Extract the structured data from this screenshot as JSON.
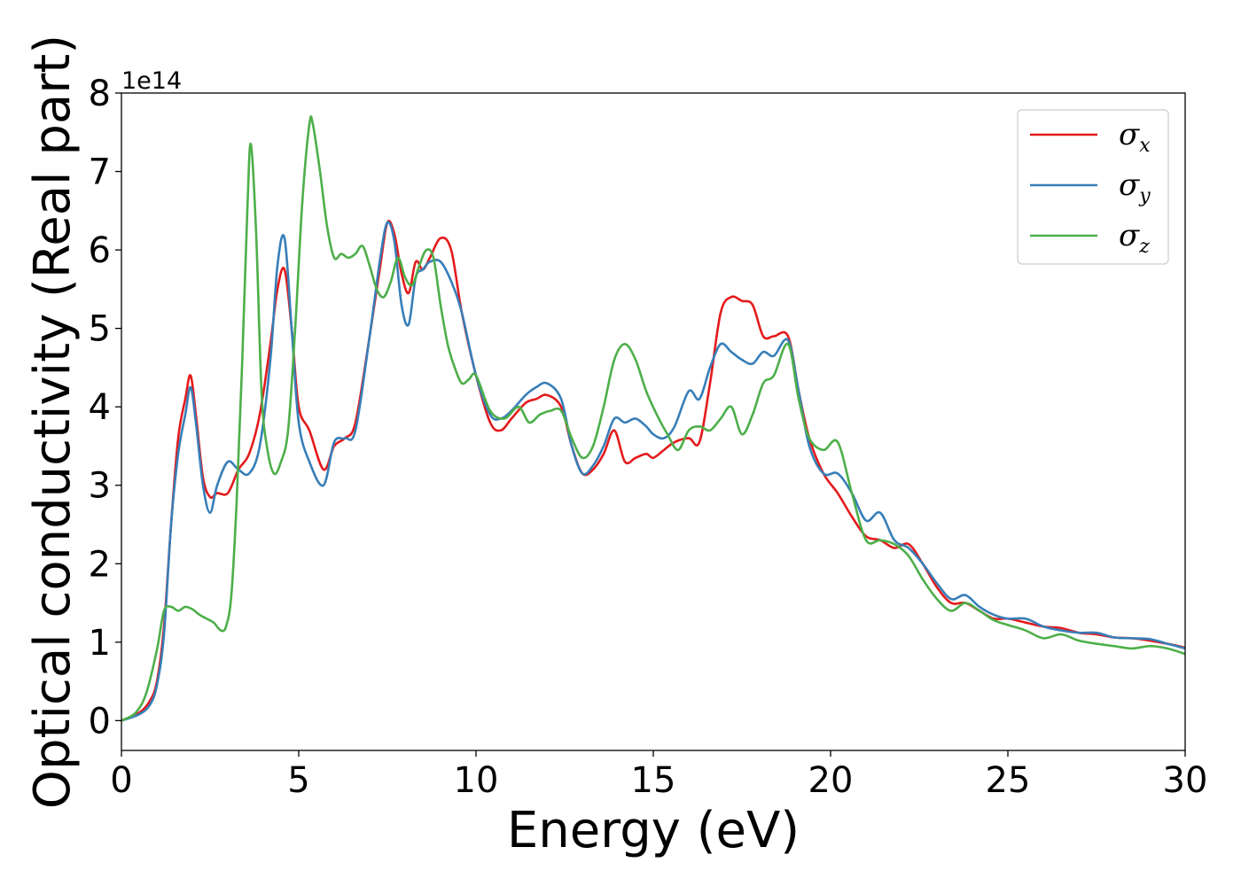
{
  "chart_data": {
    "type": "line",
    "xlabel": "Energy (eV)",
    "ylabel": "Optical conductivity (Real part)",
    "y_offset_label": "1e14",
    "xlim": [
      0,
      30
    ],
    "ylim": [
      -0.38,
      8.0
    ],
    "xticks": [
      0,
      5,
      10,
      15,
      20,
      25,
      30
    ],
    "yticks": [
      0,
      1,
      2,
      3,
      4,
      5,
      6,
      7,
      8
    ],
    "grid": false,
    "legend_position": "top-right",
    "series": [
      {
        "name": "σx",
        "symbol": "σ",
        "subscript": "x",
        "color": "#e41a1c",
        "x": [
          0,
          0.5,
          0.8,
          1.0,
          1.2,
          1.4,
          1.6,
          1.8,
          1.95,
          2.1,
          2.3,
          2.5,
          2.7,
          3.0,
          3.3,
          3.6,
          3.9,
          4.2,
          4.4,
          4.6,
          4.8,
          5.0,
          5.3,
          5.7,
          6.0,
          6.3,
          6.6,
          7.0,
          7.3,
          7.5,
          7.7,
          7.9,
          8.1,
          8.3,
          8.5,
          8.7,
          9.0,
          9.3,
          9.6,
          10.0,
          10.4,
          10.7,
          11.0,
          11.4,
          11.7,
          12.0,
          12.4,
          12.7,
          13.0,
          13.3,
          13.6,
          13.9,
          14.2,
          14.5,
          14.8,
          15.0,
          15.3,
          15.6,
          16.0,
          16.3,
          16.6,
          16.9,
          17.2,
          17.5,
          17.8,
          18.1,
          18.4,
          18.8,
          19.1,
          19.4,
          19.8,
          20.2,
          20.6,
          21.0,
          21.4,
          21.8,
          22.2,
          22.6,
          23.0,
          23.4,
          23.8,
          24.2,
          24.6,
          25.0,
          25.5,
          26.0,
          26.5,
          27.0,
          27.5,
          28.0,
          28.5,
          29.0,
          29.5,
          30.0
        ],
        "y": [
          0,
          0.1,
          0.25,
          0.5,
          1.2,
          2.5,
          3.6,
          4.1,
          4.4,
          3.9,
          3.1,
          2.85,
          2.9,
          2.9,
          3.2,
          3.4,
          3.9,
          4.8,
          5.5,
          5.75,
          5.0,
          4.0,
          3.7,
          3.2,
          3.5,
          3.6,
          3.8,
          4.9,
          5.8,
          6.35,
          6.2,
          5.7,
          5.45,
          5.85,
          5.75,
          5.9,
          6.15,
          6.0,
          5.2,
          4.4,
          3.8,
          3.7,
          3.85,
          4.05,
          4.1,
          4.15,
          4.0,
          3.5,
          3.15,
          3.2,
          3.4,
          3.7,
          3.3,
          3.35,
          3.4,
          3.35,
          3.45,
          3.55,
          3.6,
          3.55,
          4.3,
          5.2,
          5.4,
          5.35,
          5.3,
          4.9,
          4.9,
          4.9,
          4.2,
          3.6,
          3.15,
          2.9,
          2.6,
          2.35,
          2.3,
          2.2,
          2.25,
          2.0,
          1.7,
          1.5,
          1.5,
          1.4,
          1.3,
          1.3,
          1.25,
          1.2,
          1.18,
          1.12,
          1.1,
          1.06,
          1.05,
          1.02,
          0.98,
          0.93
        ]
      },
      {
        "name": "σy",
        "symbol": "σ",
        "subscript": "y",
        "color": "#377eb8",
        "x": [
          0,
          0.5,
          0.8,
          1.0,
          1.2,
          1.4,
          1.6,
          1.8,
          1.95,
          2.1,
          2.3,
          2.5,
          2.7,
          3.0,
          3.3,
          3.6,
          3.9,
          4.2,
          4.4,
          4.6,
          4.8,
          5.0,
          5.3,
          5.7,
          6.0,
          6.3,
          6.6,
          7.0,
          7.3,
          7.5,
          7.7,
          7.9,
          8.1,
          8.3,
          8.5,
          8.7,
          9.0,
          9.3,
          9.6,
          10.0,
          10.4,
          10.7,
          11.0,
          11.4,
          11.7,
          12.0,
          12.4,
          12.7,
          13.0,
          13.3,
          13.6,
          13.9,
          14.2,
          14.5,
          14.8,
          15.0,
          15.3,
          15.6,
          16.0,
          16.3,
          16.6,
          16.9,
          17.2,
          17.5,
          17.8,
          18.1,
          18.4,
          18.8,
          19.1,
          19.4,
          19.8,
          20.2,
          20.6,
          21.0,
          21.4,
          21.8,
          22.2,
          22.6,
          23.0,
          23.4,
          23.8,
          24.2,
          24.6,
          25.0,
          25.5,
          26.0,
          26.5,
          27.0,
          27.5,
          28.0,
          28.5,
          29.0,
          29.5,
          30.0
        ],
        "y": [
          0,
          0.08,
          0.2,
          0.45,
          1.1,
          2.5,
          3.4,
          3.9,
          4.25,
          3.8,
          3.0,
          2.65,
          3.0,
          3.3,
          3.2,
          3.15,
          3.5,
          4.6,
          5.8,
          6.15,
          5.0,
          3.8,
          3.3,
          3.0,
          3.55,
          3.6,
          3.7,
          4.9,
          5.9,
          6.35,
          6.1,
          5.3,
          5.05,
          5.65,
          5.75,
          5.85,
          5.85,
          5.6,
          5.2,
          4.4,
          3.9,
          3.85,
          3.95,
          4.15,
          4.25,
          4.3,
          4.1,
          3.5,
          3.15,
          3.25,
          3.5,
          3.85,
          3.8,
          3.85,
          3.75,
          3.65,
          3.6,
          3.75,
          4.2,
          4.1,
          4.5,
          4.8,
          4.7,
          4.6,
          4.55,
          4.7,
          4.65,
          4.85,
          4.2,
          3.5,
          3.15,
          3.15,
          2.9,
          2.55,
          2.65,
          2.3,
          2.2,
          2.0,
          1.75,
          1.55,
          1.6,
          1.45,
          1.35,
          1.3,
          1.3,
          1.2,
          1.15,
          1.12,
          1.12,
          1.06,
          1.05,
          1.04,
          0.98,
          0.92
        ]
      },
      {
        "name": "σz",
        "symbol": "σ",
        "subscript": "z",
        "color": "#4daf4a",
        "x": [
          0,
          0.4,
          0.7,
          1.0,
          1.2,
          1.4,
          1.6,
          1.8,
          2.0,
          2.2,
          2.4,
          2.6,
          2.8,
          2.95,
          3.1,
          3.25,
          3.4,
          3.55,
          3.65,
          3.8,
          3.95,
          4.1,
          4.3,
          4.5,
          4.7,
          4.9,
          5.1,
          5.3,
          5.4,
          5.6,
          5.8,
          6.0,
          6.2,
          6.4,
          6.6,
          6.8,
          7.0,
          7.2,
          7.4,
          7.6,
          7.8,
          8.0,
          8.2,
          8.4,
          8.6,
          8.8,
          9.0,
          9.2,
          9.4,
          9.6,
          9.8,
          10.0,
          10.4,
          10.8,
          11.2,
          11.5,
          11.8,
          12.1,
          12.4,
          12.7,
          13.0,
          13.3,
          13.6,
          13.9,
          14.2,
          14.5,
          14.8,
          15.1,
          15.4,
          15.7,
          16.0,
          16.3,
          16.6,
          16.9,
          17.2,
          17.5,
          17.8,
          18.1,
          18.4,
          18.8,
          19.1,
          19.4,
          19.8,
          20.2,
          20.6,
          21.0,
          21.4,
          21.8,
          22.2,
          22.6,
          23.0,
          23.4,
          23.8,
          24.2,
          24.6,
          25.0,
          25.5,
          26.0,
          26.5,
          27.0,
          27.5,
          28.0,
          28.5,
          29.0,
          29.5,
          30.0
        ],
        "y": [
          0,
          0.1,
          0.35,
          0.9,
          1.4,
          1.45,
          1.4,
          1.45,
          1.42,
          1.35,
          1.3,
          1.25,
          1.15,
          1.2,
          1.6,
          2.8,
          4.5,
          6.5,
          7.35,
          6.2,
          4.2,
          3.5,
          3.15,
          3.3,
          3.7,
          5.0,
          6.6,
          7.6,
          7.6,
          7.0,
          6.3,
          5.9,
          5.95,
          5.9,
          5.95,
          6.05,
          5.8,
          5.5,
          5.4,
          5.6,
          5.9,
          5.65,
          5.55,
          5.8,
          6.0,
          5.9,
          5.3,
          4.8,
          4.5,
          4.3,
          4.35,
          4.4,
          3.95,
          3.85,
          4.0,
          3.8,
          3.9,
          3.95,
          3.95,
          3.6,
          3.35,
          3.5,
          4.0,
          4.6,
          4.8,
          4.6,
          4.2,
          3.9,
          3.65,
          3.45,
          3.7,
          3.75,
          3.7,
          3.85,
          4.0,
          3.65,
          3.9,
          4.3,
          4.4,
          4.8,
          4.1,
          3.6,
          3.45,
          3.55,
          2.9,
          2.3,
          2.3,
          2.25,
          2.1,
          1.8,
          1.55,
          1.4,
          1.5,
          1.4,
          1.28,
          1.22,
          1.15,
          1.05,
          1.1,
          1.02,
          0.98,
          0.95,
          0.92,
          0.95,
          0.92,
          0.85
        ]
      }
    ]
  }
}
